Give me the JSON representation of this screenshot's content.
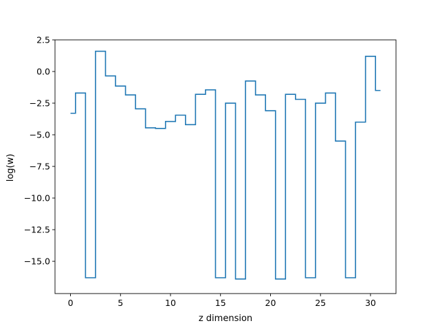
{
  "chart_data": {
    "type": "line",
    "drawstyle": "steps-mid",
    "xlabel": "z dimension",
    "ylabel": "log(w)",
    "xlim": [
      -1.55,
      32.55
    ],
    "ylim": [
      -17.55,
      2.5
    ],
    "xticks": [
      0,
      5,
      10,
      15,
      20,
      25,
      30
    ],
    "xtick_labels": [
      "0",
      "5",
      "10",
      "15",
      "20",
      "25",
      "30"
    ],
    "yticks": [
      2.5,
      0.0,
      -2.5,
      -5.0,
      -7.5,
      -10.0,
      -12.5,
      -15.0
    ],
    "ytick_labels": [
      "2.5",
      "0.0",
      "−2.5",
      "−5.0",
      "−7.5",
      "−10.0",
      "−12.5",
      "−15.0"
    ],
    "grid": false,
    "series": [
      {
        "color": "#1f77b4",
        "x": [
          0,
          1,
          2,
          3,
          4,
          5,
          6,
          7,
          8,
          9,
          10,
          11,
          12,
          13,
          14,
          15,
          16,
          17,
          18,
          19,
          20,
          21,
          22,
          23,
          24,
          25,
          26,
          27,
          28,
          29,
          30,
          31
        ],
        "y": [
          -3.3,
          -1.7,
          -16.3,
          1.6,
          -0.35,
          -1.15,
          -1.85,
          -2.95,
          -4.45,
          -4.5,
          -3.95,
          -3.45,
          -4.2,
          -1.8,
          -1.45,
          -16.3,
          -2.5,
          -16.4,
          -0.75,
          -1.85,
          -3.1,
          -16.4,
          -1.8,
          -2.2,
          -16.3,
          -2.5,
          -1.7,
          -5.5,
          -16.3,
          -4.0,
          1.2,
          -1.5
        ]
      }
    ]
  }
}
